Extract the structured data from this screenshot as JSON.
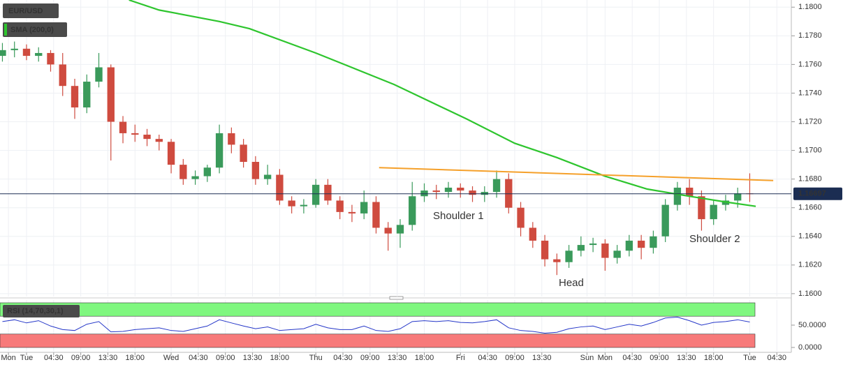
{
  "chart_data": [
    {
      "type": "candlestick",
      "title": "EUR/USD",
      "x": [
        20,
        22,
        24,
        26,
        28,
        30,
        32,
        34,
        36,
        38,
        40,
        42,
        44,
        46,
        48,
        50,
        52,
        54,
        56,
        58,
        60,
        62,
        64,
        66,
        68,
        70,
        72,
        74,
        76,
        78,
        80,
        82,
        84,
        86,
        88,
        90,
        92,
        94,
        96,
        98,
        100,
        102,
        104,
        106,
        108,
        110,
        112,
        114,
        116,
        118,
        120,
        122,
        124,
        126,
        128,
        130,
        132,
        134,
        136,
        138,
        140,
        142,
        144
      ],
      "open": [
        1.1766,
        1.177,
        1.1771,
        1.1766,
        1.1768,
        1.176,
        1.1745,
        1.173,
        1.1748,
        1.1758,
        1.172,
        1.1712,
        1.1711,
        1.1708,
        1.1706,
        1.169,
        1.168,
        1.1682,
        1.1688,
        1.1712,
        1.1704,
        1.1692,
        1.168,
        1.1683,
        1.1665,
        1.1661,
        1.1662,
        1.1676,
        1.1665,
        1.1657,
        1.1656,
        1.1664,
        1.1646,
        1.1642,
        1.1648,
        1.1668,
        1.1672,
        1.1671,
        1.1674,
        1.1672,
        1.1669,
        1.1671,
        1.168,
        1.166,
        1.1646,
        1.1637,
        1.1624,
        1.1622,
        1.163,
        1.1634,
        1.1635,
        1.1625,
        1.163,
        1.1637,
        1.1632,
        1.164,
        1.1662,
        1.1674,
        1.1668,
        1.1652,
        1.1662,
        1.1665,
        1.167
      ],
      "high": [
        1.1775,
        1.1776,
        1.1774,
        1.1772,
        1.177,
        1.1768,
        1.175,
        1.1753,
        1.1768,
        1.176,
        1.1724,
        1.1718,
        1.1715,
        1.1711,
        1.1708,
        1.1694,
        1.1686,
        1.169,
        1.1718,
        1.1716,
        1.1708,
        1.1696,
        1.169,
        1.1687,
        1.1668,
        1.1666,
        1.168,
        1.168,
        1.1668,
        1.1662,
        1.1672,
        1.1668,
        1.165,
        1.1652,
        1.1678,
        1.1677,
        1.1676,
        1.1678,
        1.1677,
        1.1675,
        1.1675,
        1.1686,
        1.1684,
        1.1664,
        1.165,
        1.1641,
        1.1628,
        1.1634,
        1.164,
        1.1639,
        1.1638,
        1.1634,
        1.1641,
        1.1641,
        1.1644,
        1.1666,
        1.1678,
        1.168,
        1.1672,
        1.1665,
        1.1669,
        1.1674,
        1.1684
      ],
      "low": [
        1.1762,
        1.1765,
        1.1763,
        1.1762,
        1.1755,
        1.1738,
        1.1722,
        1.1726,
        1.1744,
        1.1693,
        1.1705,
        1.1706,
        1.1703,
        1.17,
        1.1684,
        1.1676,
        1.1676,
        1.1678,
        1.1684,
        1.1698,
        1.1688,
        1.1676,
        1.1676,
        1.1662,
        1.1656,
        1.1656,
        1.166,
        1.1662,
        1.1652,
        1.165,
        1.1652,
        1.1642,
        1.163,
        1.1632,
        1.1644,
        1.1664,
        1.1666,
        1.1667,
        1.1667,
        1.1664,
        1.1664,
        1.1667,
        1.1656,
        1.164,
        1.1632,
        1.1619,
        1.1613,
        1.1618,
        1.1626,
        1.1629,
        1.1616,
        1.1621,
        1.1626,
        1.1624,
        1.1628,
        1.1636,
        1.1658,
        1.1662,
        1.1644,
        1.1648,
        1.1658,
        1.166,
        1.1664
      ],
      "close": [
        1.177,
        1.1771,
        1.1766,
        1.1768,
        1.176,
        1.1745,
        1.173,
        1.1748,
        1.1758,
        1.172,
        1.1712,
        1.1711,
        1.1708,
        1.1706,
        1.169,
        1.168,
        1.1682,
        1.1688,
        1.1712,
        1.1704,
        1.1692,
        1.168,
        1.1683,
        1.1665,
        1.1661,
        1.1662,
        1.1676,
        1.1665,
        1.1657,
        1.1656,
        1.1664,
        1.1646,
        1.1642,
        1.1648,
        1.1668,
        1.1672,
        1.1671,
        1.1674,
        1.1672,
        1.1669,
        1.1671,
        1.168,
        1.166,
        1.1646,
        1.1637,
        1.1624,
        1.1622,
        1.163,
        1.1634,
        1.1635,
        1.1625,
        1.163,
        1.1637,
        1.1632,
        1.164,
        1.1662,
        1.1674,
        1.1668,
        1.1652,
        1.1662,
        1.1665,
        1.167,
        1.16697
      ],
      "up_color": "#3a9a5b",
      "down_color": "#cf4b3f",
      "xlim": [
        19.6,
        150.9
      ],
      "ylim": [
        1.1598,
        1.1805
      ],
      "yticks": [
        {
          "value": 1.18,
          "label": "1.1800"
        },
        {
          "value": 1.178,
          "label": "1.1780"
        },
        {
          "value": 1.176,
          "label": "1.1760"
        },
        {
          "value": 1.174,
          "label": "1.1740"
        },
        {
          "value": 1.172,
          "label": "1.1720"
        },
        {
          "value": 1.17,
          "label": "1.1700"
        },
        {
          "value": 1.168,
          "label": "1.1680"
        },
        {
          "value": 1.166,
          "label": "1.1660"
        },
        {
          "value": 1.164,
          "label": "1.1640"
        },
        {
          "value": 1.162,
          "label": "1.1620"
        },
        {
          "value": 1.16,
          "label": "1.1600"
        }
      ],
      "xticks": [
        {
          "value": 21,
          "label": "Mon"
        },
        {
          "value": 24,
          "label": "Tue"
        },
        {
          "value": 28.5,
          "label": "04:30"
        },
        {
          "value": 33,
          "label": "09:00"
        },
        {
          "value": 37.5,
          "label": "13:30"
        },
        {
          "value": 42,
          "label": "18:00"
        },
        {
          "value": 48,
          "label": "Wed"
        },
        {
          "value": 52.5,
          "label": "04:30"
        },
        {
          "value": 57,
          "label": "09:00"
        },
        {
          "value": 61.5,
          "label": "13:30"
        },
        {
          "value": 66,
          "label": "18:00"
        },
        {
          "value": 72,
          "label": "Thu"
        },
        {
          "value": 76.5,
          "label": "04:30"
        },
        {
          "value": 81,
          "label": "09:00"
        },
        {
          "value": 85.5,
          "label": "13:30"
        },
        {
          "value": 90,
          "label": "18:00"
        },
        {
          "value": 96,
          "label": "Fri"
        },
        {
          "value": 100.5,
          "label": "04:30"
        },
        {
          "value": 105,
          "label": "09:00"
        },
        {
          "value": 109.5,
          "label": "13:30"
        },
        {
          "value": 117,
          "label": "Sun"
        },
        {
          "value": 120,
          "label": "Mon"
        },
        {
          "value": 124.5,
          "label": "04:30"
        },
        {
          "value": 129,
          "label": "09:00"
        },
        {
          "value": 133.5,
          "label": "13:30"
        },
        {
          "value": 138,
          "label": "18:00"
        },
        {
          "value": 144,
          "label": "Tue"
        },
        {
          "value": 148.5,
          "label": "04:30"
        }
      ],
      "grid": true,
      "overlays": [
        {
          "name": "SMA (200,0)",
          "color": "#2ec52e",
          "x": [
            41,
            46,
            56,
            61,
            72,
            85,
            97,
            105,
            112,
            120,
            127,
            134,
            140,
            145
          ],
          "values": [
            1.1805,
            1.1798,
            1.179,
            1.1785,
            1.1768,
            1.1746,
            1.1722,
            1.1705,
            1.1695,
            1.1682,
            1.1673,
            1.1668,
            1.1664,
            1.1661
          ]
        }
      ],
      "trendline": {
        "color": "#f5a02a",
        "x": [
          82.5,
          147.9
        ],
        "values": [
          1.1688,
          1.1679
        ]
      },
      "annotations": [
        {
          "text": "Shoulder 1"
        },
        {
          "text": "Head"
        },
        {
          "text": "Shoulder 2"
        }
      ],
      "annotation_color": "#f0a030",
      "last_price": 1.16697
    },
    {
      "type": "line",
      "title": "RSI (14,70,30,1)",
      "color": "#2436c8",
      "values": [
        58,
        62,
        55,
        60,
        48,
        40,
        38,
        52,
        58,
        35,
        36,
        40,
        42,
        44,
        38,
        36,
        42,
        48,
        62,
        55,
        48,
        42,
        46,
        38,
        40,
        42,
        52,
        44,
        40,
        40,
        48,
        38,
        36,
        42,
        58,
        60,
        58,
        60,
        56,
        55,
        58,
        62,
        44,
        38,
        36,
        32,
        34,
        42,
        46,
        48,
        40,
        46,
        52,
        48,
        56,
        66,
        68,
        60,
        50,
        56,
        58,
        62,
        57
      ],
      "ylim": [
        0,
        100
      ],
      "yticks": [
        {
          "value": 50,
          "label": "50.0000"
        },
        {
          "value": 0,
          "label": "0.0000"
        }
      ],
      "bands": [
        {
          "from": 70,
          "to": 100,
          "color": "#7ff77f"
        },
        {
          "from": 0,
          "to": 30,
          "color": "#f77a7a"
        }
      ]
    }
  ]
}
